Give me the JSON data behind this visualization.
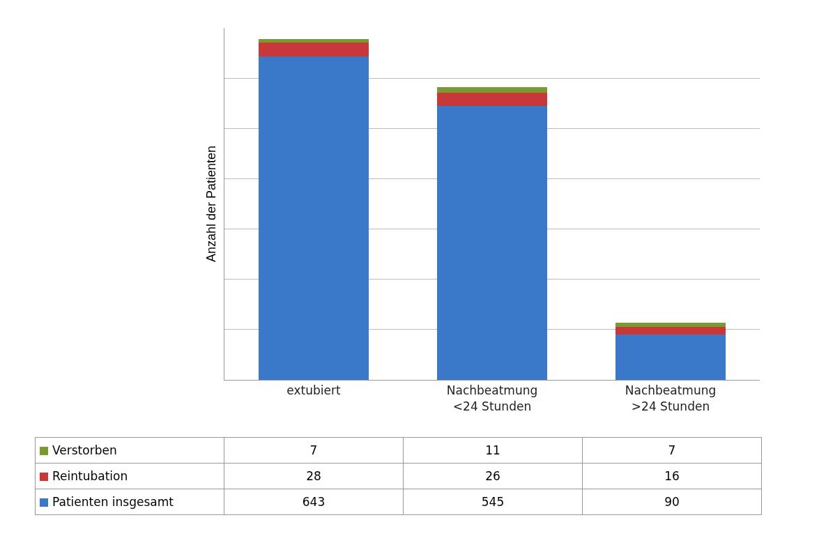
{
  "chart_data": {
    "type": "bar",
    "ylabel": "Anzahl der Patienten",
    "categories": [
      "extubiert",
      "Nachbeatmung <24 Stunden",
      "Nachbeatmung >24 Stunden"
    ],
    "stacked": true,
    "series": [
      {
        "name": "Patienten insgesamt",
        "color": "#3a78c9",
        "values": [
          643,
          545,
          90
        ]
      },
      {
        "name": "Reintubation",
        "color": "#c8383a",
        "values": [
          28,
          26,
          16
        ]
      },
      {
        "name": "Verstorben",
        "color": "#7a9a32",
        "values": [
          7,
          11,
          7
        ]
      }
    ],
    "ylim": [
      0,
      700
    ],
    "grid": "y",
    "tick_labels": "x",
    "data_labels": true,
    "legend": "bottom left"
  }
}
